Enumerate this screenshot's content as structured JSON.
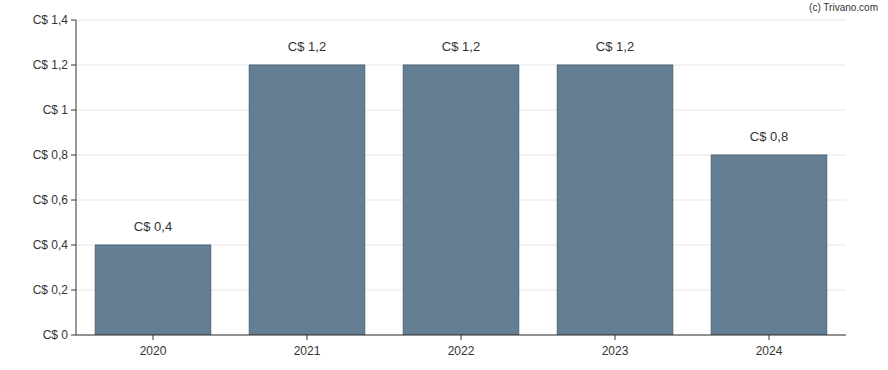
{
  "chart_data": {
    "type": "bar",
    "categories": [
      "2020",
      "2021",
      "2022",
      "2023",
      "2024"
    ],
    "values": [
      0.4,
      1.2,
      1.2,
      1.2,
      0.8
    ],
    "value_labels": [
      "C$ 0,4",
      "C$ 1,2",
      "C$ 1,2",
      "C$ 1,2",
      "C$ 0,8"
    ],
    "data_labels": true,
    "color": "#647f94",
    "ylim": [
      0,
      1.4
    ],
    "yticks": [
      {
        "value": 0,
        "label": "C$ 0"
      },
      {
        "value": 0.2,
        "label": "C$ 0,2"
      },
      {
        "value": 0.4,
        "label": "C$ 0,4"
      },
      {
        "value": 0.6,
        "label": "C$ 0,6"
      },
      {
        "value": 0.8,
        "label": "C$ 0,8"
      },
      {
        "value": 1,
        "label": "C$ 1"
      },
      {
        "value": 1.2,
        "label": "C$ 1,2"
      },
      {
        "value": 1.4,
        "label": "C$ 1,4"
      }
    ],
    "grid": true,
    "annotations": [
      "(c) Trivano.com"
    ]
  }
}
